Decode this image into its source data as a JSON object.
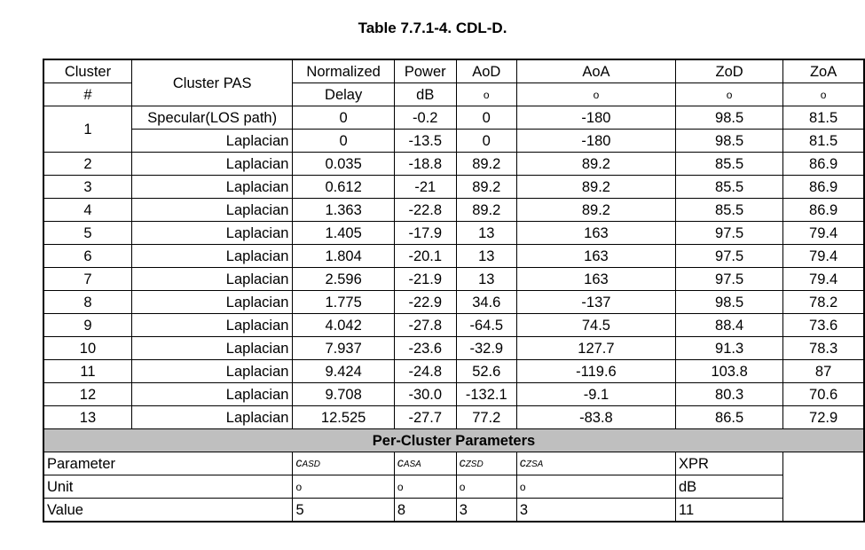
{
  "title": "Table 7.7.1-4. CDL-D.",
  "headers": {
    "cluster": [
      "Cluster",
      "#"
    ],
    "pas": "Cluster PAS",
    "delay": [
      "Normalized",
      "Delay"
    ],
    "power": [
      "Power",
      "dB"
    ],
    "aod": [
      "AoD",
      "o"
    ],
    "aoa": [
      "AoA",
      "o"
    ],
    "zod": [
      "ZoD",
      "o"
    ],
    "zoa": [
      "ZoA",
      "o"
    ]
  },
  "cluster1": {
    "num": "1",
    "rows": [
      {
        "pas": "Specular(LOS path)",
        "delay": "0",
        "power": "-0.2",
        "aod": "0",
        "aoa": "-180",
        "zod": "98.5",
        "zoa": "81.5"
      },
      {
        "pas": "Laplacian",
        "delay": "0",
        "power": "-13.5",
        "aod": "0",
        "aoa": "-180",
        "zod": "98.5",
        "zoa": "81.5"
      }
    ]
  },
  "rows": [
    {
      "num": "2",
      "pas": "Laplacian",
      "delay": "0.035",
      "power": "-18.8",
      "aod": "89.2",
      "aoa": "89.2",
      "zod": "85.5",
      "zoa": "86.9"
    },
    {
      "num": "3",
      "pas": "Laplacian",
      "delay": "0.612",
      "power": "-21",
      "aod": "89.2",
      "aoa": "89.2",
      "zod": "85.5",
      "zoa": "86.9"
    },
    {
      "num": "4",
      "pas": "Laplacian",
      "delay": "1.363",
      "power": "-22.8",
      "aod": "89.2",
      "aoa": "89.2",
      "zod": "85.5",
      "zoa": "86.9"
    },
    {
      "num": "5",
      "pas": "Laplacian",
      "delay": "1.405",
      "power": "-17.9",
      "aod": "13",
      "aoa": "163",
      "zod": "97.5",
      "zoa": "79.4"
    },
    {
      "num": "6",
      "pas": "Laplacian",
      "delay": "1.804",
      "power": "-20.1",
      "aod": "13",
      "aoa": "163",
      "zod": "97.5",
      "zoa": "79.4"
    },
    {
      "num": "7",
      "pas": "Laplacian",
      "delay": "2.596",
      "power": "-21.9",
      "aod": "13",
      "aoa": "163",
      "zod": "97.5",
      "zoa": "79.4"
    },
    {
      "num": "8",
      "pas": "Laplacian",
      "delay": "1.775",
      "power": "-22.9",
      "aod": "34.6",
      "aoa": "-137",
      "zod": "98.5",
      "zoa": "78.2"
    },
    {
      "num": "9",
      "pas": "Laplacian",
      "delay": "4.042",
      "power": "-27.8",
      "aod": "-64.5",
      "aoa": "74.5",
      "zod": "88.4",
      "zoa": "73.6"
    },
    {
      "num": "10",
      "pas": "Laplacian",
      "delay": "7.937",
      "power": "-23.6",
      "aod": "-32.9",
      "aoa": "127.7",
      "zod": "91.3",
      "zoa": "78.3"
    },
    {
      "num": "11",
      "pas": "Laplacian",
      "delay": "9.424",
      "power": "-24.8",
      "aod": "52.6",
      "aoa": "-119.6",
      "zod": "103.8",
      "zoa": "87"
    },
    {
      "num": "12",
      "pas": "Laplacian",
      "delay": "9.708",
      "power": "-30.0",
      "aod": "-132.1",
      "aoa": "-9.1",
      "zod": "80.3",
      "zoa": "70.6"
    },
    {
      "num": "13",
      "pas": "Laplacian",
      "delay": "12.525",
      "power": "-27.7",
      "aod": "77.2",
      "aoa": "-83.8",
      "zod": "86.5",
      "zoa": "72.9"
    }
  ],
  "per_cluster": {
    "heading": "Per-Cluster Parameters",
    "labels": {
      "parameter": "Parameter",
      "unit": "Unit",
      "value": "Value"
    },
    "params": [
      {
        "sym": "c",
        "sub": "ASD",
        "unit": "o",
        "value": "5"
      },
      {
        "sym": "c",
        "sub": "ASA",
        "unit": "o",
        "value": "8"
      },
      {
        "sym": "c",
        "sub": "ZSD",
        "unit": "o",
        "value": "3"
      },
      {
        "sym": "c",
        "sub": "ZSA",
        "unit": "o",
        "value": "3"
      },
      {
        "sym": "XPR",
        "sub": "",
        "unit": "dB",
        "value": "11"
      }
    ]
  }
}
